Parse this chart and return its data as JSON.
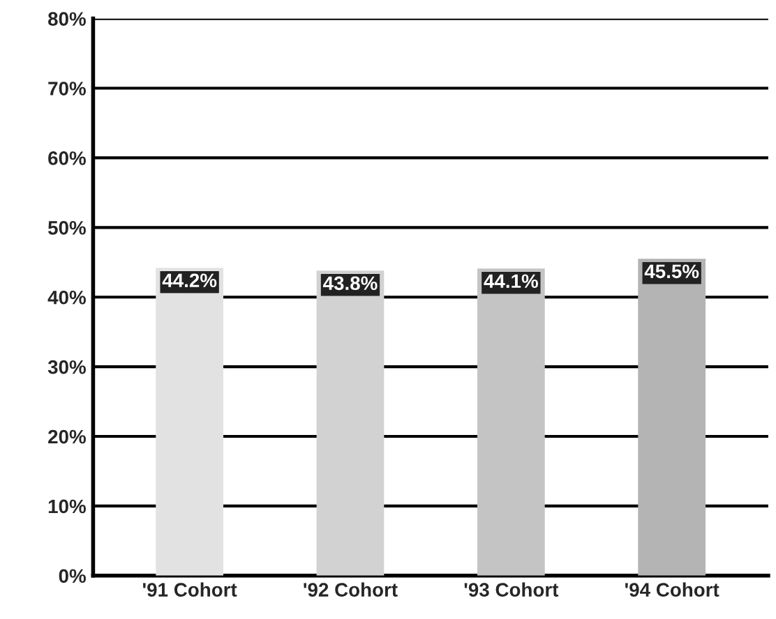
{
  "chart_data": {
    "type": "bar",
    "categories": [
      "'91 Cohort",
      "'92 Cohort",
      "'93 Cohort",
      "'94 Cohort"
    ],
    "values": [
      44.2,
      43.8,
      44.1,
      45.5
    ],
    "colors": [
      "#e2e2e2",
      "#d2d2d2",
      "#c4c4c4",
      "#b4b4b4"
    ],
    "value_labels": [
      "44.2%",
      "43.8%",
      "44.1%",
      "45.5%"
    ],
    "ylim": [
      0,
      80
    ],
    "yticks": [
      {
        "value": 0,
        "label": "0%"
      },
      {
        "value": 10,
        "label": "10%"
      },
      {
        "value": 20,
        "label": "20%"
      },
      {
        "value": 30,
        "label": "30%"
      },
      {
        "value": 40,
        "label": "40%"
      },
      {
        "value": 50,
        "label": "50%"
      },
      {
        "value": 60,
        "label": "60%"
      },
      {
        "value": 70,
        "label": "70%"
      },
      {
        "value": 80,
        "label": "80%"
      }
    ],
    "grid": "y"
  }
}
